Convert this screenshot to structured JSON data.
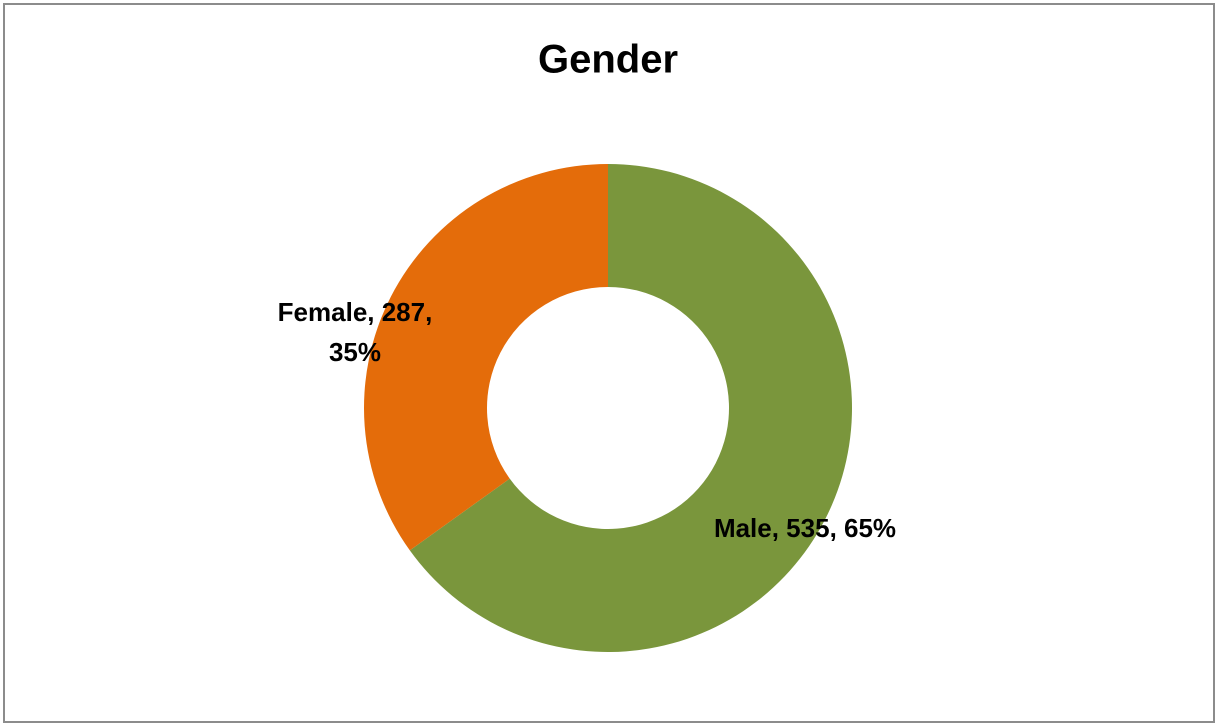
{
  "chart_data": {
    "type": "donut",
    "title": "Gender",
    "categories": [
      "Male",
      "Female"
    ],
    "values": [
      535,
      287
    ],
    "value_labels": [
      "Male, 535, 65%",
      "Female, 287, 35%"
    ],
    "colors": [
      "#7a963c",
      "#e46c0a"
    ]
  }
}
